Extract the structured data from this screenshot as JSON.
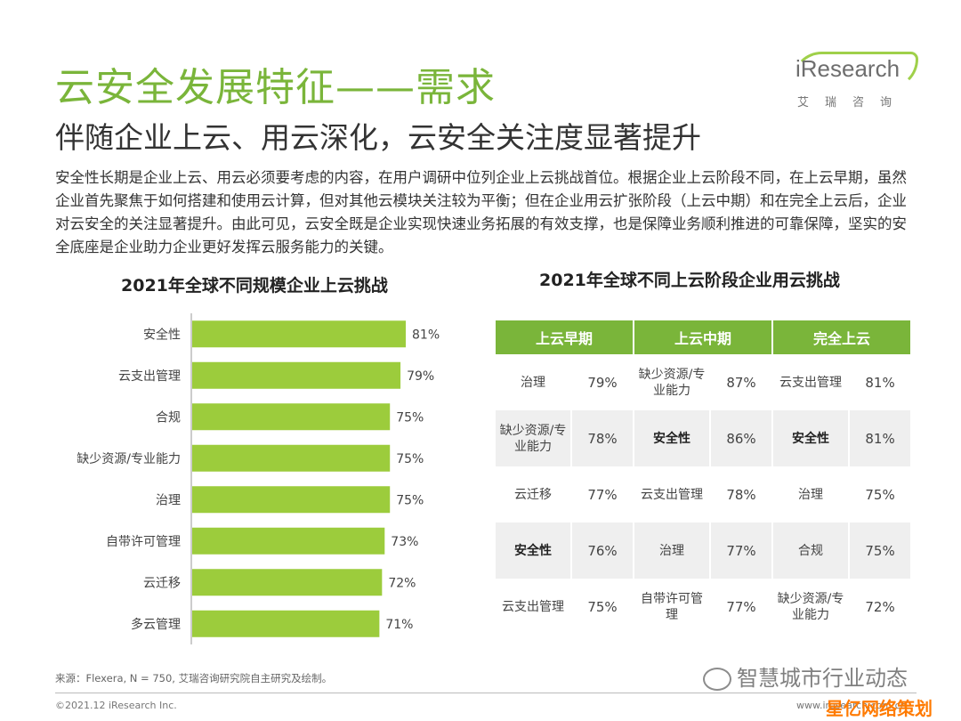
{
  "header": {
    "title": "云安全发展特征——需求",
    "subtitle": "伴随企业上云、用云深化，云安全关注度显著提升",
    "logo_text": "iResearch",
    "logo_sub": "艾瑞咨询"
  },
  "body_text": "安全性长期是企业上云、用云必须要考虑的内容，在用户调研中位列企业上云挑战首位。根据企业上云阶段不同，在上云早期，虽然企业首先聚焦于如何搭建和使用云计算，但对其他云模块关注较为平衡；但在企业用云扩张阶段（上云中期）和在完全上云后，企业对云安全的关注显著提升。由此可见，云安全既是企业实现快速业务拓展的有效支撑，也是保障业务顺利推进的可靠保障，坚实的安全底座是企业助力企业更好发挥云服务能力的关键。",
  "colors": {
    "accent": "#7ab53a",
    "bar": "#9ccc3c",
    "table_header": "#7ab53a"
  },
  "chart_data": [
    {
      "type": "bar",
      "orientation": "horizontal",
      "title": "2021年全球不同规模企业上云挑战",
      "categories": [
        "安全性",
        "云支出管理",
        "合规",
        "缺少资源/专业能力",
        "治理",
        "自带许可管理",
        "云迁移",
        "多云管理"
      ],
      "values": [
        81,
        79,
        75,
        75,
        75,
        73,
        72,
        71
      ],
      "value_labels": [
        "81%",
        "79%",
        "75%",
        "75%",
        "75%",
        "73%",
        "72%",
        "71%"
      ],
      "xlim": [
        0,
        100
      ],
      "grid": false
    },
    {
      "type": "table",
      "title": "2021年全球不同上云阶段企业用云挑战",
      "columns": [
        "上云早期",
        "上云中期",
        "完全上云"
      ],
      "rows": [
        [
          {
            "item": "治理",
            "value": "79%"
          },
          {
            "item": "缺少资源/专业能力",
            "value": "87%"
          },
          {
            "item": "云支出管理",
            "value": "81%"
          }
        ],
        [
          {
            "item": "缺少资源/专业能力",
            "value": "78%"
          },
          {
            "item": "安全性",
            "value": "86%",
            "bold": true
          },
          {
            "item": "安全性",
            "value": "81%",
            "bold": true
          }
        ],
        [
          {
            "item": "云迁移",
            "value": "77%"
          },
          {
            "item": "云支出管理",
            "value": "78%"
          },
          {
            "item": "治理",
            "value": "75%"
          }
        ],
        [
          {
            "item": "安全性",
            "value": "76%",
            "bold": true
          },
          {
            "item": "治理",
            "value": "77%"
          },
          {
            "item": "合规",
            "value": "75%"
          }
        ],
        [
          {
            "item": "云支出管理",
            "value": "75%"
          },
          {
            "item": "自带许可管理",
            "value": "77%"
          },
          {
            "item": "缺少资源/专业能力",
            "value": "72%"
          }
        ]
      ]
    }
  ],
  "footer": {
    "source": "来源：Flexera, N = 750, 艾瑞咨询研究院自主研究及绘制。",
    "copyright": "©2021.12 iResearch Inc.",
    "site": "www.iresearch.com.cn",
    "watermark": "智慧城市行业动态",
    "corner_mark": "星亿网络策划"
  }
}
